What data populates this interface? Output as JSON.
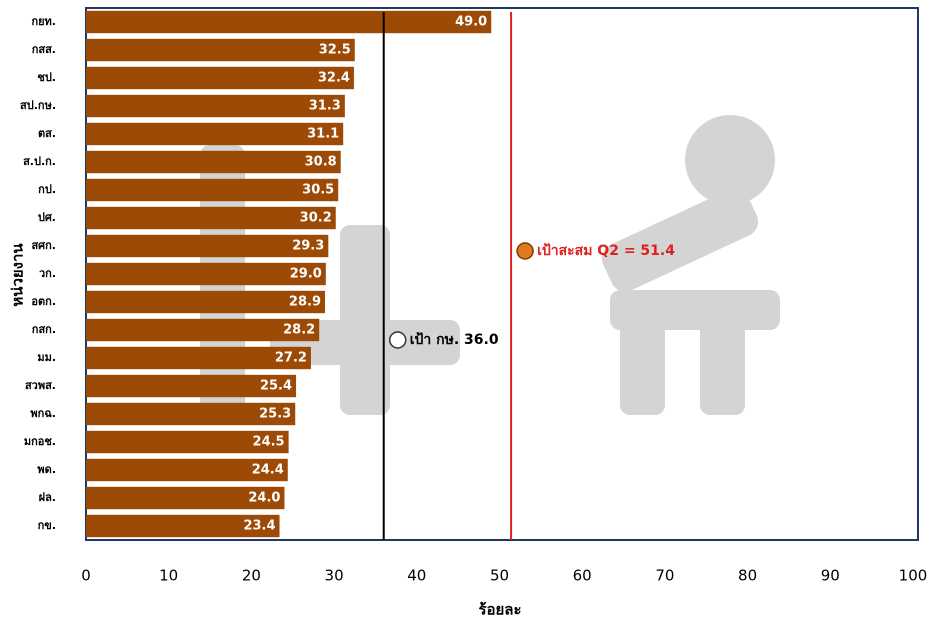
{
  "chart_data": {
    "type": "barh",
    "xlabel": "ร้อยละ",
    "ylabel": "หน่วยงาน",
    "categories": [
      "กยท.",
      "กสส.",
      "ชป.",
      "สป.กษ.",
      "ตส.",
      "ส.ป.ก.",
      "กป.",
      "ปศ.",
      "สศก.",
      "วก.",
      "อตก.",
      "กสก.",
      "มม.",
      "สวพส.",
      "พกฉ.",
      "มกอช.",
      "พด.",
      "ฝล.",
      "กข."
    ],
    "values": [
      49.0,
      32.5,
      32.4,
      31.3,
      31.1,
      30.8,
      30.5,
      30.2,
      29.3,
      29.0,
      28.9,
      28.2,
      27.2,
      25.4,
      25.3,
      24.5,
      24.4,
      24.0,
      23.4
    ],
    "value_labels": [
      "49.0",
      "32.5",
      "32.4",
      "31.3",
      "31.1",
      "30.8",
      "30.5",
      "30.2",
      "29.3",
      "29.0",
      "28.9",
      "28.2",
      "27.2",
      "25.4",
      "25.3",
      "24.5",
      "24.4",
      "24.0",
      "23.4"
    ],
    "color": "#9c4a06",
    "xlim": [
      0,
      100
    ],
    "xticks": [
      0,
      10,
      20,
      30,
      40,
      50,
      60,
      70,
      80,
      90,
      100
    ],
    "grid": false,
    "reference_lines": [
      {
        "value": 36.0,
        "label": "เป้า กษ. 36.0",
        "color": "#000000"
      },
      {
        "value": 51.4,
        "label": "เป้าสะสม Q2  = 51.4",
        "color": "#e02020"
      }
    ]
  }
}
